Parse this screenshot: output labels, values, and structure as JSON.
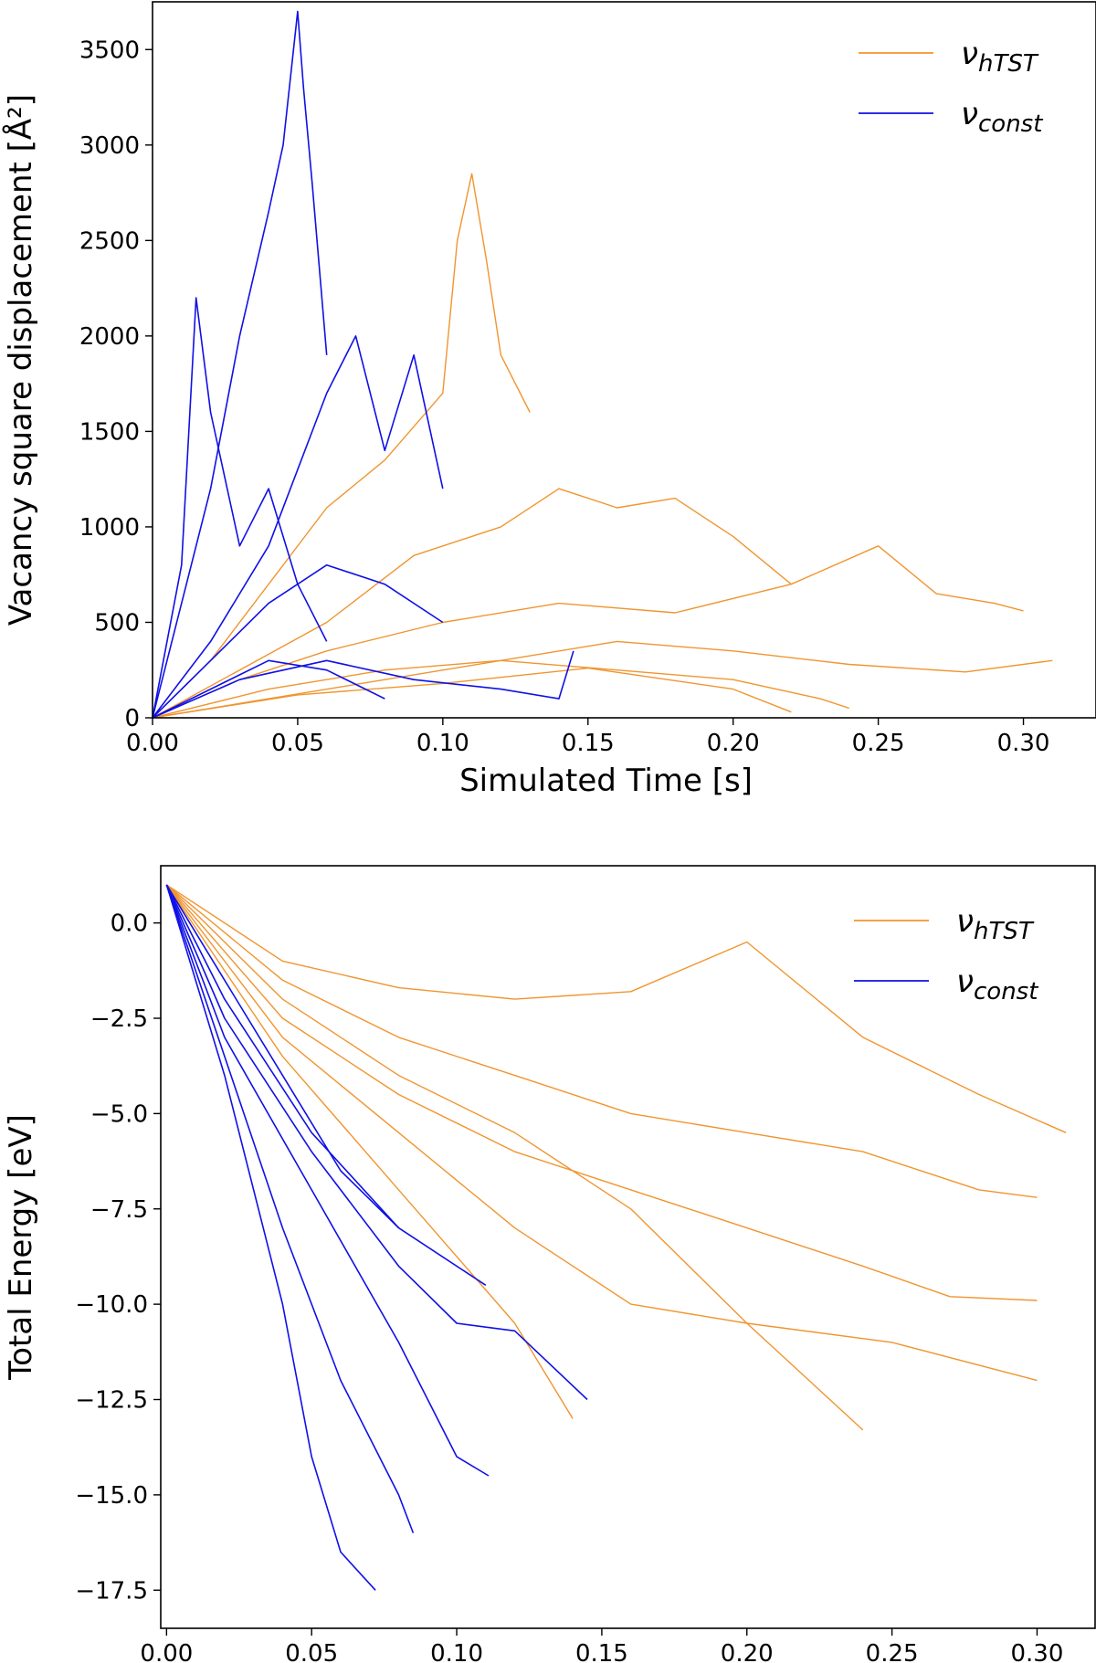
{
  "figure": {
    "panel_count": 2
  },
  "chart_data": [
    {
      "type": "line",
      "xlabel": "Simulated Time [s]",
      "ylabel": "Vacancy square displacement [Å²]",
      "xlim": [
        0.0,
        0.325
      ],
      "ylim": [
        0,
        3750
      ],
      "xticks": [
        "0.00",
        "0.05",
        "0.10",
        "0.15",
        "0.20",
        "0.25",
        "0.30"
      ],
      "yticks": [
        "0",
        "500",
        "1000",
        "1500",
        "2000",
        "2500",
        "3000",
        "3500"
      ],
      "grid": false,
      "legend_position": "top-right",
      "series": [
        {
          "name": "νhTST",
          "legend_main": "ν",
          "legend_sub": "hTST",
          "color": "#f0952f",
          "trajectories": [
            {
              "x": [
                0.0,
                0.02,
                0.04,
                0.06,
                0.08,
                0.1,
                0.105,
                0.11,
                0.115,
                0.12,
                0.13
              ],
              "y": [
                0,
                300,
                700,
                1100,
                1350,
                1700,
                2500,
                2850,
                2400,
                1900,
                1600
              ]
            },
            {
              "x": [
                0.0,
                0.03,
                0.06,
                0.09,
                0.12,
                0.14,
                0.16,
                0.18,
                0.2,
                0.22
              ],
              "y": [
                0,
                250,
                500,
                850,
                1000,
                1200,
                1100,
                1150,
                950,
                700
              ]
            },
            {
              "x": [
                0.0,
                0.03,
                0.06,
                0.1,
                0.14,
                0.18,
                0.22,
                0.25,
                0.27,
                0.29,
                0.3
              ],
              "y": [
                0,
                200,
                350,
                500,
                600,
                550,
                700,
                900,
                650,
                600,
                560
              ]
            },
            {
              "x": [
                0.0,
                0.04,
                0.08,
                0.12,
                0.16,
                0.2,
                0.24,
                0.28,
                0.31
              ],
              "y": [
                0,
                150,
                250,
                300,
                400,
                350,
                280,
                240,
                300
              ]
            },
            {
              "x": [
                0.0,
                0.04,
                0.08,
                0.12,
                0.16,
                0.2,
                0.23,
                0.24
              ],
              "y": [
                0,
                100,
                200,
                300,
                250,
                200,
                100,
                50
              ]
            },
            {
              "x": [
                0.0,
                0.05,
                0.1,
                0.15,
                0.2,
                0.22
              ],
              "y": [
                0,
                120,
                180,
                260,
                150,
                30
              ]
            }
          ]
        },
        {
          "name": "νconst",
          "legend_main": "ν",
          "legend_sub": "const",
          "color": "#1010e6",
          "trajectories": [
            {
              "x": [
                0.0,
                0.01,
                0.02,
                0.03,
                0.04,
                0.045,
                0.05,
                0.052,
                0.055,
                0.06
              ],
              "y": [
                0,
                600,
                1200,
                2000,
                2650,
                3000,
                3700,
                3300,
                2800,
                1900
              ]
            },
            {
              "x": [
                0.0,
                0.01,
                0.015,
                0.02,
                0.03,
                0.04,
                0.05,
                0.06
              ],
              "y": [
                0,
                800,
                2200,
                1600,
                900,
                1200,
                700,
                400
              ]
            },
            {
              "x": [
                0.0,
                0.02,
                0.04,
                0.06,
                0.07,
                0.08,
                0.09,
                0.1
              ],
              "y": [
                0,
                400,
                900,
                1700,
                2000,
                1400,
                1900,
                1200
              ]
            },
            {
              "x": [
                0.0,
                0.02,
                0.04,
                0.06,
                0.08,
                0.1
              ],
              "y": [
                0,
                300,
                600,
                800,
                700,
                500
              ]
            },
            {
              "x": [
                0.0,
                0.03,
                0.06,
                0.09,
                0.12,
                0.14,
                0.145
              ],
              "y": [
                0,
                200,
                300,
                200,
                150,
                100,
                350
              ]
            },
            {
              "x": [
                0.0,
                0.02,
                0.04,
                0.06,
                0.08
              ],
              "y": [
                0,
                150,
                300,
                250,
                100
              ]
            }
          ]
        }
      ]
    },
    {
      "type": "line",
      "xlabel": "Simulated Time [s]",
      "ylabel": "Total Energy [eV]",
      "xlim": [
        -0.002,
        0.32
      ],
      "ylim": [
        -18.5,
        1.5
      ],
      "xticks": [
        "0.00",
        "0.05",
        "0.10",
        "0.15",
        "0.20",
        "0.25",
        "0.30"
      ],
      "yticks": [
        "0.0",
        "−2.5",
        "−5.0",
        "−7.5",
        "−10.0",
        "−12.5",
        "−15.0",
        "−17.5"
      ],
      "grid": false,
      "legend_position": "top-right",
      "series": [
        {
          "name": "νhTST",
          "legend_main": "ν",
          "legend_sub": "hTST",
          "color": "#f0952f",
          "trajectories": [
            {
              "x": [
                0.0,
                0.04,
                0.08,
                0.12,
                0.16,
                0.2,
                0.24,
                0.28,
                0.31
              ],
              "y": [
                1.0,
                -1.0,
                -1.7,
                -2.0,
                -1.8,
                -0.5,
                -3.0,
                -4.5,
                -5.5
              ]
            },
            {
              "x": [
                0.0,
                0.04,
                0.08,
                0.12,
                0.16,
                0.2,
                0.24,
                0.28,
                0.3
              ],
              "y": [
                1.0,
                -1.5,
                -3.0,
                -4.0,
                -5.0,
                -5.5,
                -6.0,
                -7.0,
                -7.2
              ]
            },
            {
              "x": [
                0.0,
                0.04,
                0.08,
                0.12,
                0.16,
                0.2,
                0.24,
                0.27,
                0.3
              ],
              "y": [
                1.0,
                -2.5,
                -4.5,
                -6.0,
                -7.0,
                -8.0,
                -9.0,
                -9.8,
                -9.9
              ]
            },
            {
              "x": [
                0.0,
                0.04,
                0.08,
                0.12,
                0.16,
                0.2,
                0.25,
                0.3
              ],
              "y": [
                1.0,
                -3.0,
                -5.5,
                -8.0,
                -10.0,
                -10.5,
                -11.0,
                -12.0
              ]
            },
            {
              "x": [
                0.0,
                0.04,
                0.08,
                0.12,
                0.16,
                0.2,
                0.24
              ],
              "y": [
                1.0,
                -2.0,
                -4.0,
                -5.5,
                -7.5,
                -10.5,
                -13.3
              ]
            },
            {
              "x": [
                0.0,
                0.04,
                0.08,
                0.12,
                0.14
              ],
              "y": [
                1.0,
                -3.5,
                -7.0,
                -10.5,
                -13.0
              ]
            }
          ]
        },
        {
          "name": "νconst",
          "legend_main": "ν",
          "legend_sub": "const",
          "color": "#1010e6",
          "trajectories": [
            {
              "x": [
                0.0,
                0.02,
                0.04,
                0.05,
                0.06,
                0.072
              ],
              "y": [
                1.0,
                -4.0,
                -10.0,
                -14.0,
                -16.5,
                -17.5
              ]
            },
            {
              "x": [
                0.0,
                0.02,
                0.04,
                0.06,
                0.08,
                0.085
              ],
              "y": [
                1.0,
                -3.5,
                -8.0,
                -12.0,
                -15.0,
                -16.0
              ]
            },
            {
              "x": [
                0.0,
                0.02,
                0.05,
                0.08,
                0.1,
                0.111
              ],
              "y": [
                1.0,
                -3.0,
                -7.0,
                -11.0,
                -14.0,
                -14.5
              ]
            },
            {
              "x": [
                0.0,
                0.02,
                0.05,
                0.08,
                0.1,
                0.12,
                0.145
              ],
              "y": [
                1.0,
                -2.5,
                -6.0,
                -9.0,
                -10.5,
                -10.7,
                -12.5
              ]
            },
            {
              "x": [
                0.0,
                0.02,
                0.05,
                0.08,
                0.11
              ],
              "y": [
                1.0,
                -2.0,
                -5.5,
                -8.0,
                -9.5
              ]
            },
            {
              "x": [
                0.0,
                0.02,
                0.04,
                0.06,
                0.08
              ],
              "y": [
                1.0,
                -1.5,
                -4.0,
                -6.5,
                -8.0
              ]
            }
          ]
        }
      ]
    }
  ]
}
